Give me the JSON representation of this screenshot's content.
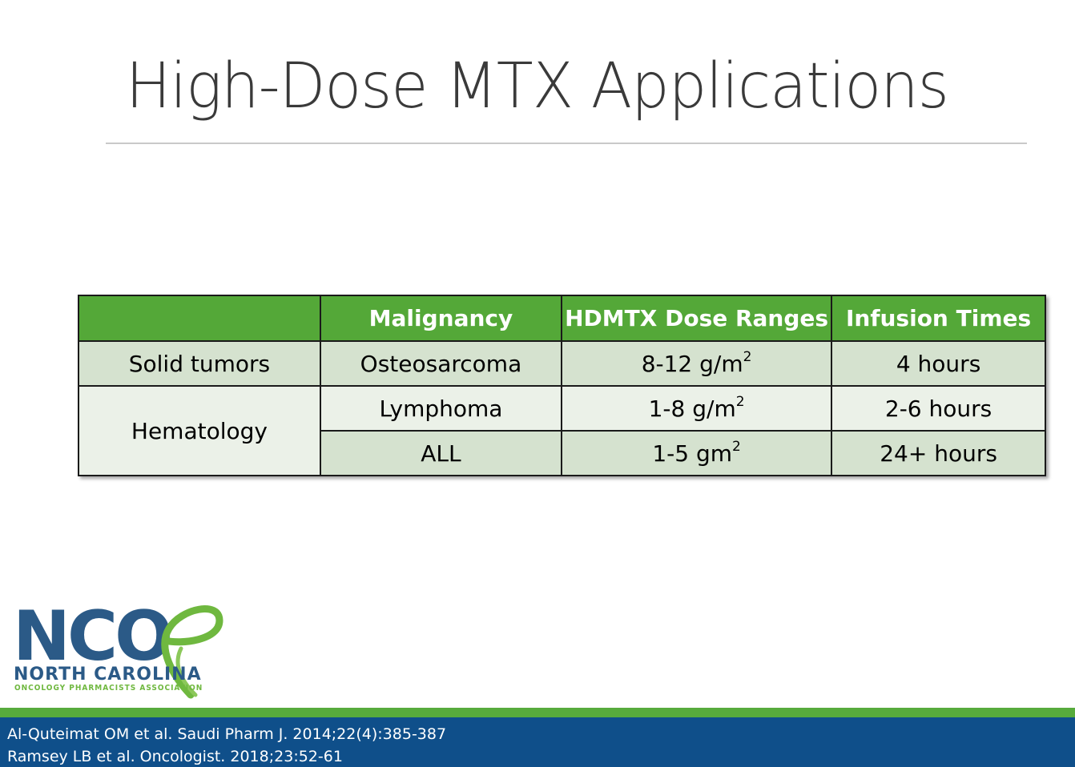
{
  "slide": {
    "title": "High-Dose MTX Applications"
  },
  "table": {
    "headers": [
      "",
      "Malignancy",
      "HDMTX Dose Ranges",
      "Infusion Times"
    ],
    "rows": [
      {
        "category": "Solid tumors",
        "malignancy": "Osteosarcoma",
        "dose": "8-12 g/m",
        "dose_sup": "2",
        "time": "4 hours"
      },
      {
        "category": "Hematology",
        "malignancy": "Lymphoma",
        "dose": "1-8 g/m",
        "dose_sup": "2",
        "time": "2-6 hours"
      },
      {
        "category": "",
        "malignancy": "ALL",
        "dose": "1-5 gm",
        "dose_sup": "2",
        "time": "24+ hours"
      }
    ]
  },
  "logo": {
    "mark": "NCO",
    "name": "NORTH CAROLINA",
    "subtitle": "ONCOLOGY PHARMACISTS ASSOCIATION"
  },
  "footer": {
    "references": [
      "Al-Quteimat OM et al. Saudi Pharm J. 2014;22(4):385-387",
      "Ramsey LB et al. Oncologist. 2018;23:52-61"
    ]
  },
  "colors": {
    "header_green": "#54a838",
    "row_dark": "#d5e2cf",
    "row_light": "#ebf1e8",
    "footer_blue": "#0f4f8a",
    "footer_green": "#57ab3c",
    "logo_blue": "#2b5a87",
    "logo_green": "#6fb83f"
  }
}
